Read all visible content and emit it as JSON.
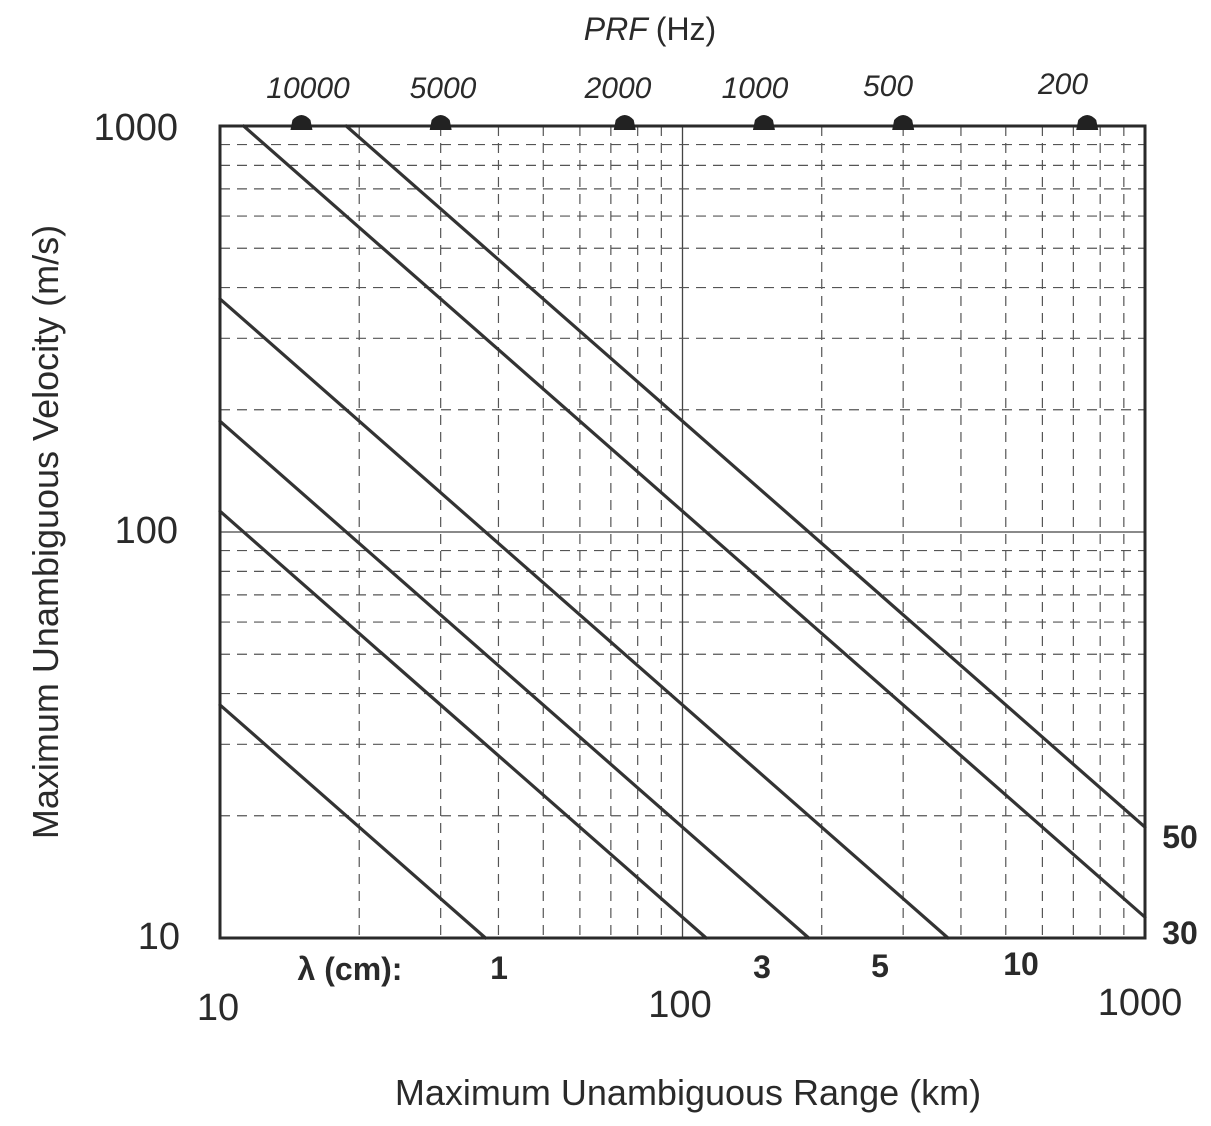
{
  "chart_data": {
    "type": "line",
    "title": "",
    "xlabel": "Maximum Unambiguous Range (km)",
    "ylabel": "Maximum Unambiguous Velocity (m/s)",
    "xscale": "log",
    "yscale": "log",
    "xlim": [
      10,
      1000
    ],
    "ylim": [
      10,
      1000
    ],
    "x_ticks": [
      "10",
      "100",
      "1000"
    ],
    "y_ticks": [
      "10",
      "100",
      "1000"
    ],
    "grid": true,
    "top_axis": {
      "label_italic": "PRF",
      "label_unit": "(Hz)",
      "ticks": [
        {
          "label": "10000",
          "value": 10000
        },
        {
          "label": "5000",
          "value": 5000
        },
        {
          "label": "2000",
          "value": 2000
        },
        {
          "label": "1000",
          "value": 1000
        },
        {
          "label": "500",
          "value": 500
        },
        {
          "label": "200",
          "value": 200
        }
      ]
    },
    "series_label_prefix": "λ (cm):",
    "series": [
      {
        "name": "1",
        "lambda_cm": 1,
        "points": [
          [
            10,
            37.5
          ],
          [
            37.5,
            10
          ]
        ]
      },
      {
        "name": "3",
        "lambda_cm": 3,
        "points": [
          [
            10,
            112.5
          ],
          [
            112.5,
            10
          ]
        ]
      },
      {
        "name": "5",
        "lambda_cm": 5,
        "points": [
          [
            10,
            187.5
          ],
          [
            187.5,
            10
          ]
        ]
      },
      {
        "name": "10",
        "lambda_cm": 10,
        "points": [
          [
            10,
            375
          ],
          [
            375,
            10
          ]
        ]
      },
      {
        "name": "30",
        "lambda_cm": 30,
        "points": [
          [
            11.25,
            1000
          ],
          [
            1000,
            11.25
          ]
        ]
      },
      {
        "name": "50",
        "lambda_cm": 50,
        "points": [
          [
            18.75,
            1000
          ],
          [
            1000,
            18.75
          ]
        ]
      }
    ]
  }
}
